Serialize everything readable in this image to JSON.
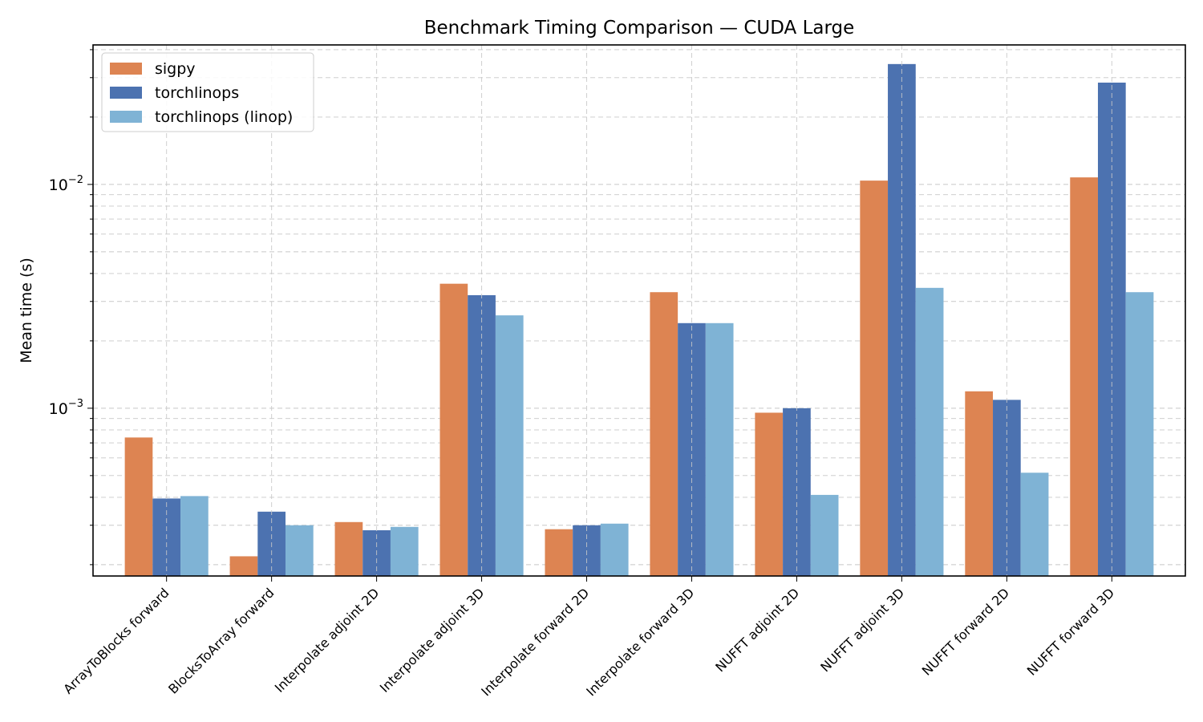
{
  "chart_data": {
    "type": "bar",
    "title": "Benchmark Timing Comparison — CUDA Large",
    "xlabel": "",
    "ylabel": "Mean time (s)",
    "yscale": "log",
    "ylim": [
      0.000178,
      0.042
    ],
    "yticks": [
      {
        "value": 0.001,
        "base": "10",
        "exp": "−3"
      },
      {
        "value": 0.01,
        "base": "10",
        "exp": "−2"
      }
    ],
    "grid": true,
    "legend_position": "top-left",
    "categories": [
      "ArrayToBlocks forward",
      "BlocksToArray forward",
      "Interpolate adjoint 2D",
      "Interpolate adjoint 3D",
      "Interpolate forward 2D",
      "Interpolate forward 3D",
      "NUFFT adjoint 2D",
      "NUFFT adjoint 3D",
      "NUFFT forward 2D",
      "NUFFT forward 3D"
    ],
    "series": [
      {
        "name": "sigpy",
        "color": "#dd8452",
        "values": [
          0.00074,
          0.000218,
          0.00031,
          0.0036,
          0.000288,
          0.0033,
          0.000955,
          0.0104,
          0.00119,
          0.01075
        ]
      },
      {
        "name": "torchlinops",
        "color": "#4c72b0",
        "values": [
          0.000395,
          0.000345,
          0.000285,
          0.0032,
          0.0003,
          0.0024,
          0.001,
          0.0345,
          0.00109,
          0.0285
        ]
      },
      {
        "name": "torchlinops (linop)",
        "color": "#7fb3d5",
        "values": [
          0.000405,
          0.0003,
          0.000295,
          0.0026,
          0.000305,
          0.0024,
          0.00041,
          0.00345,
          0.000515,
          0.0033
        ]
      }
    ]
  }
}
